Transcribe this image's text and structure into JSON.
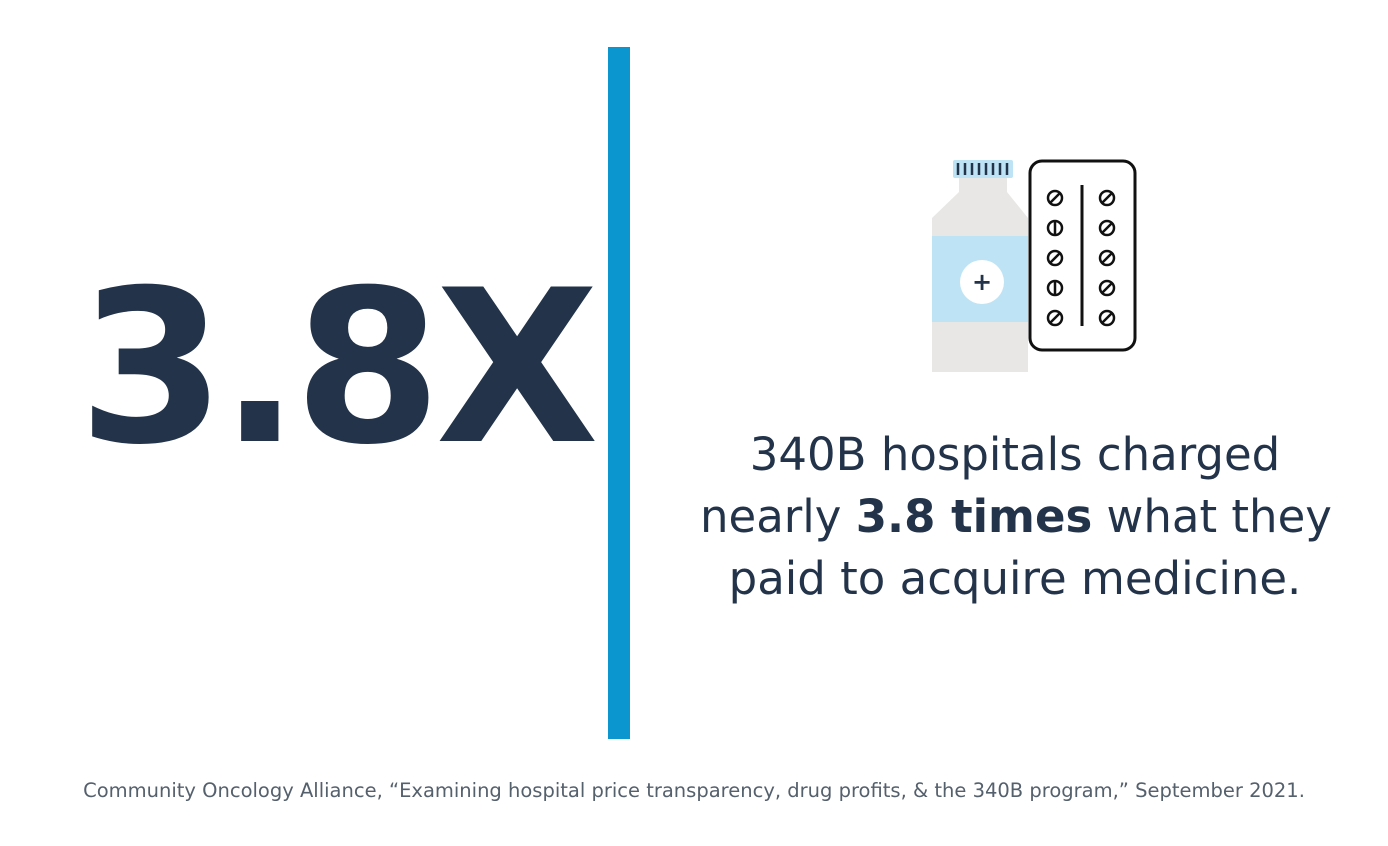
{
  "colors": {
    "navy": "#22334a",
    "accent_blue": "#0b96d0",
    "light_blue": "#bde3f5",
    "bottle_gray": "#e8e7e5",
    "citation_gray": "#55606d"
  },
  "stat": {
    "value": "3.8X"
  },
  "illustration": {
    "icon_names": [
      "medicine-bottle-icon",
      "pill-blister-pack-icon"
    ],
    "bottle_symbol": "+"
  },
  "message": {
    "line1": "340B hospitals charged",
    "line2_before": "nearly ",
    "line2_emphasis": "3.8 times",
    "line2_after": " what they",
    "line3": "paid to acquire medicine."
  },
  "citation": {
    "text": "Community Oncology Alliance, “Examining hospital price transparency, drug profits, & the 340B program,” September 2021."
  }
}
